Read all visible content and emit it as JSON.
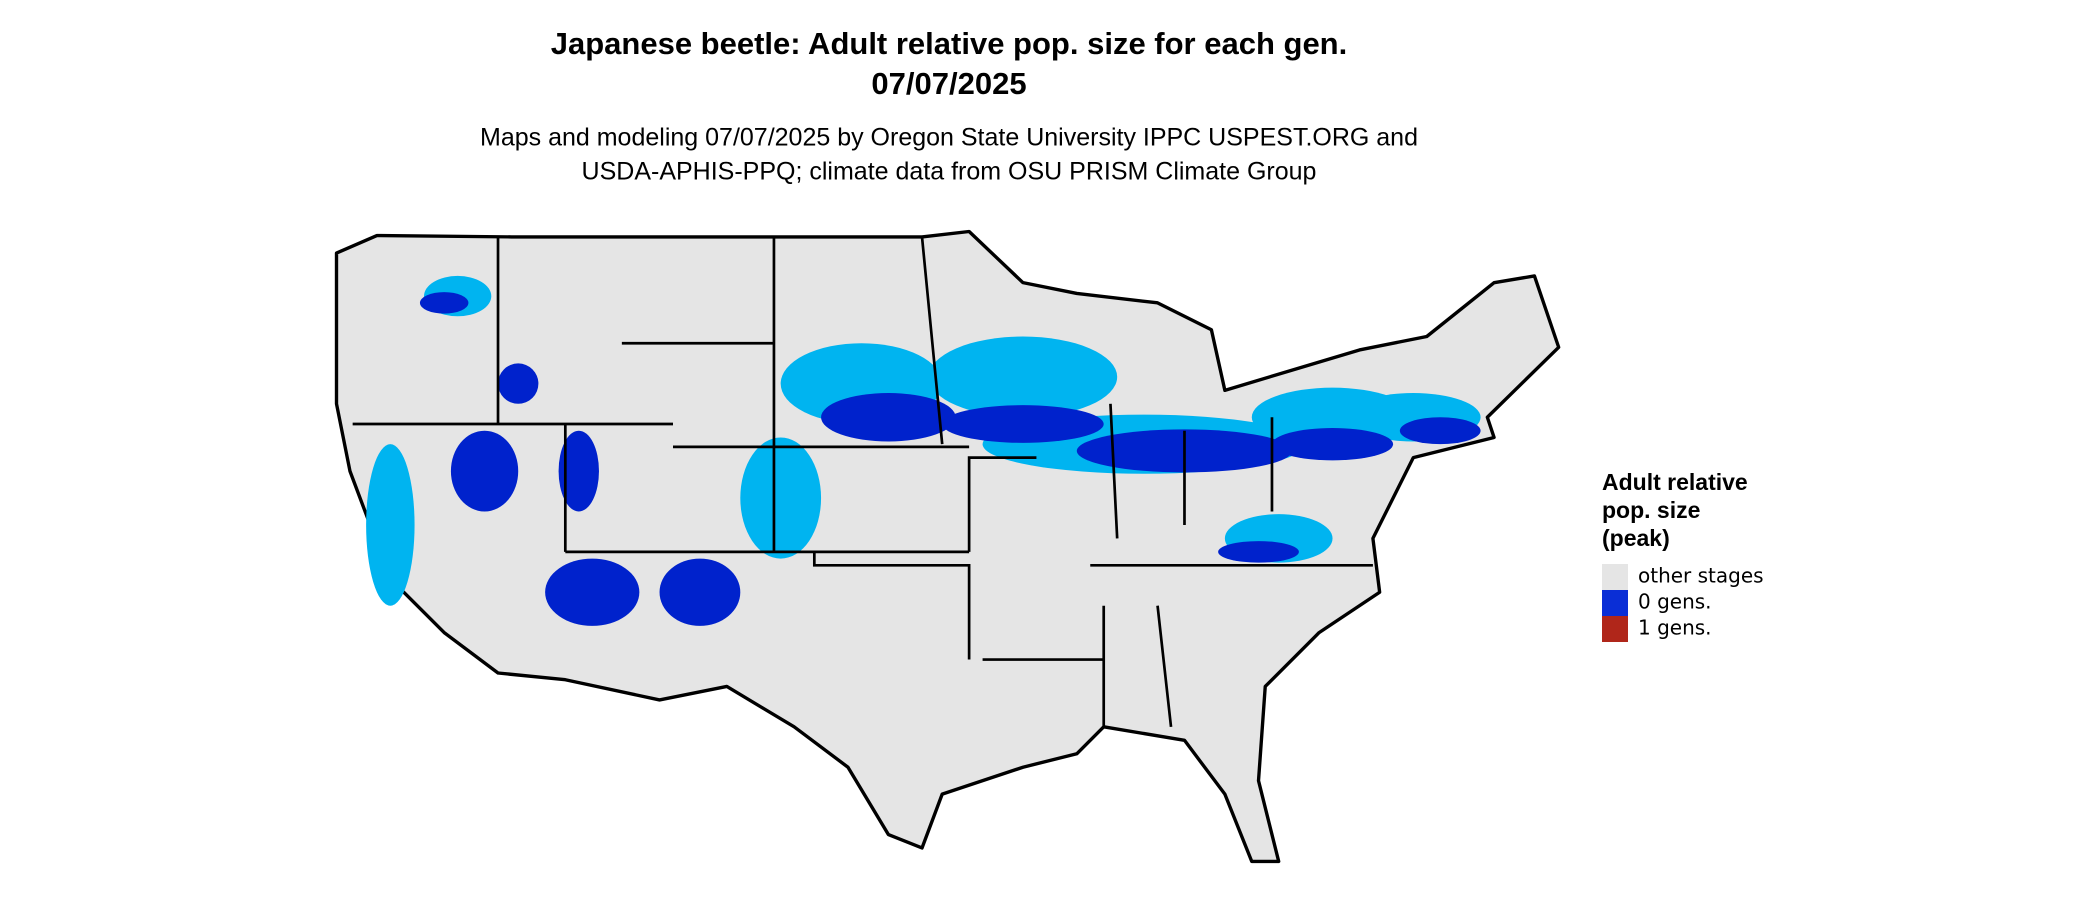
{
  "header": {
    "title_lines": [
      "Japanese beetle: Adult relative pop. size for each gen.",
      "07/07/2025"
    ],
    "subtitle_lines": [
      "Maps and modeling 07/07/2025 by Oregon State University IPPC USPEST.ORG and",
      "USDA-APHIS-PPQ; climate data from OSU PRISM Climate Group"
    ]
  },
  "legend": {
    "title_lines": [
      "Adult relative",
      "pop. size",
      "(peak)"
    ],
    "items": [
      {
        "label": "other stages",
        "color": "#e5e5e5"
      },
      {
        "label": "0 gens.",
        "color": "#0a2ed6"
      },
      {
        "label": "1 gens.",
        "color": "#b0261a"
      }
    ]
  }
}
